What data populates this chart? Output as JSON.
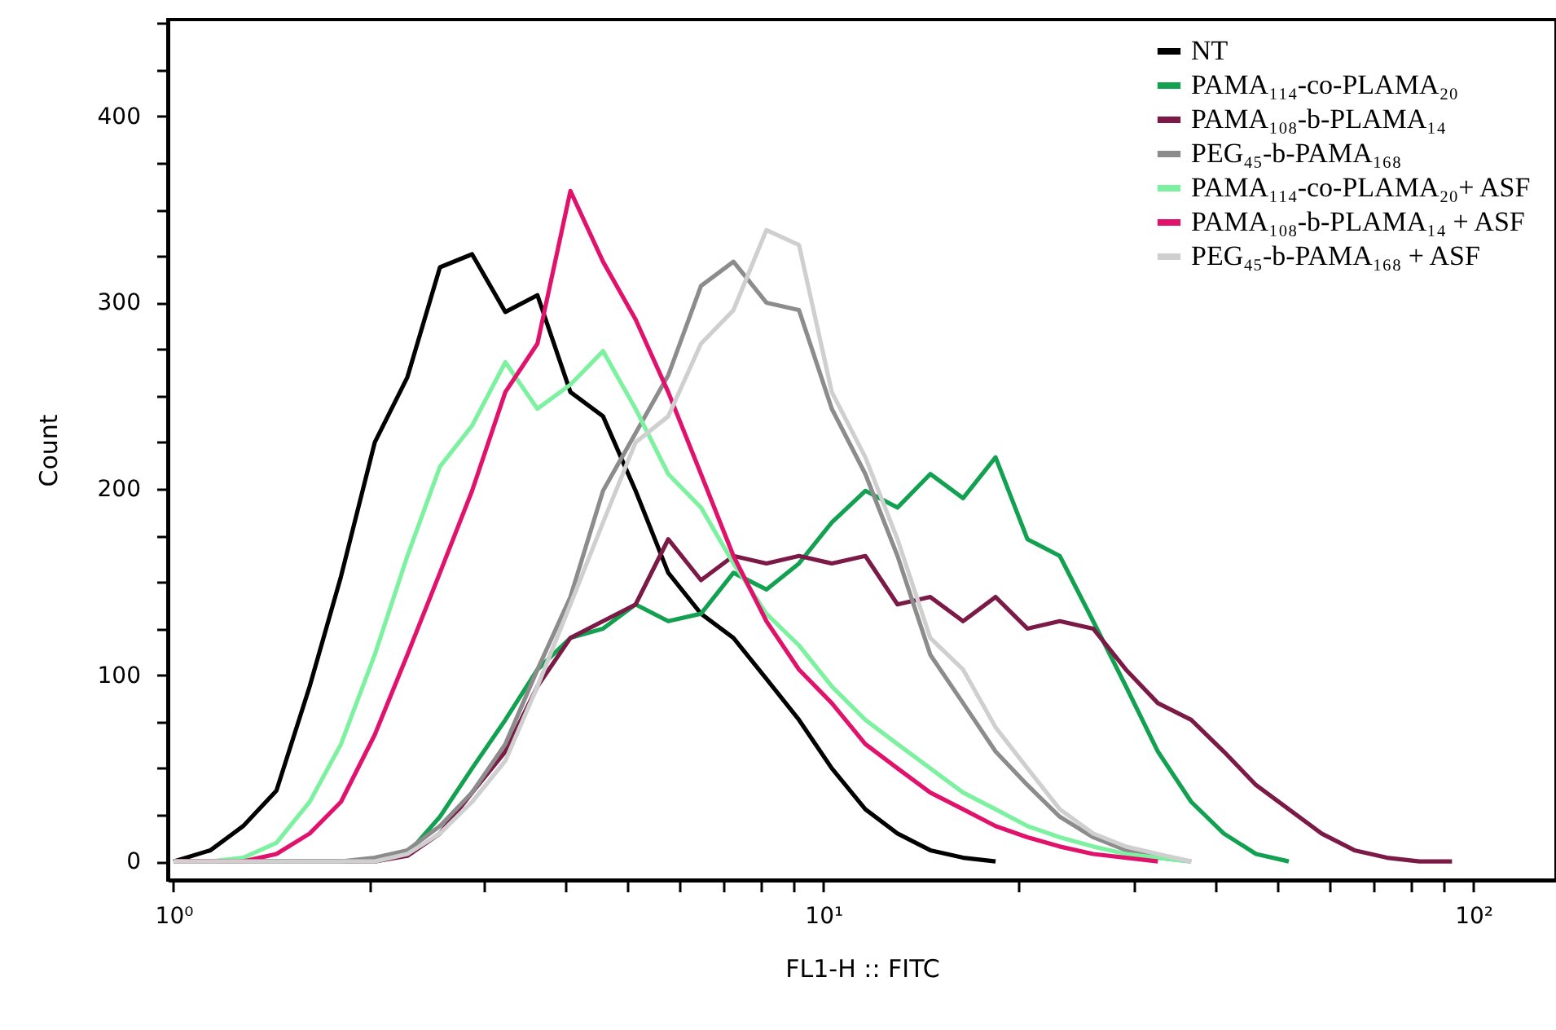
{
  "chart_data": {
    "type": "line",
    "xlabel": "FL1-H :: FITC",
    "ylabel": "Count",
    "log": "x",
    "legend": "top right",
    "grid": false,
    "line_style": "solid",
    "marker": "none",
    "xlim": [
      0.98,
      134
    ],
    "xticks": [
      {
        "value": 1,
        "label": "10⁰"
      },
      {
        "value": 2,
        "label": null
      },
      {
        "value": 3,
        "label": null
      },
      {
        "value": 4,
        "label": null
      },
      {
        "value": 5,
        "label": null
      },
      {
        "value": 6,
        "label": null
      },
      {
        "value": 7,
        "label": null
      },
      {
        "value": 8,
        "label": null
      },
      {
        "value": 9,
        "label": null
      },
      {
        "value": 10,
        "label": "10¹"
      },
      {
        "value": 20,
        "label": null
      },
      {
        "value": 30,
        "label": null
      },
      {
        "value": 40,
        "label": null
      },
      {
        "value": 50,
        "label": null
      },
      {
        "value": 60,
        "label": null
      },
      {
        "value": 70,
        "label": null
      },
      {
        "value": 80,
        "label": null
      },
      {
        "value": 90,
        "label": null
      },
      {
        "value": 100,
        "label": "10²"
      }
    ],
    "ylim": [
      -10,
      452
    ],
    "yticks": [
      0,
      {
        "value": 25,
        "label": null
      },
      {
        "value": 50,
        "label": null
      },
      {
        "value": 75,
        "label": null
      },
      100,
      {
        "value": 125,
        "label": null
      },
      {
        "value": 150,
        "label": null
      },
      {
        "value": 175,
        "label": null
      },
      200,
      {
        "value": 225,
        "label": null
      },
      {
        "value": 250,
        "label": null
      },
      {
        "value": 275,
        "label": null
      },
      300,
      {
        "value": 325,
        "label": null
      },
      {
        "value": 350,
        "label": null
      },
      {
        "value": 375,
        "label": null
      },
      400,
      {
        "value": 425,
        "label": null
      },
      {
        "value": 450,
        "label": null
      }
    ],
    "x": [
      1.0,
      1.14,
      1.28,
      1.44,
      1.62,
      1.81,
      2.04,
      2.29,
      2.57,
      2.88,
      3.24,
      3.63,
      4.08,
      4.58,
      5.14,
      5.77,
      6.48,
      7.27,
      8.17,
      9.17,
      10.3,
      11.6,
      13.0,
      14.6,
      16.4,
      18.4,
      20.6,
      23.1,
      26.0,
      29.2,
      32.7,
      36.8,
      41.3,
      46.3,
      52.0,
      58.4,
      65.6,
      73.6,
      82.6,
      92.7
    ],
    "series": [
      {
        "name": "NT",
        "color": "#000000",
        "values": [
          0,
          6,
          19,
          38,
          94,
          153,
          225,
          260,
          319,
          326,
          295,
          304,
          252,
          239,
          199,
          155,
          133,
          120,
          98,
          76,
          50,
          28,
          15,
          6,
          2,
          0,
          null,
          null,
          null,
          null,
          null,
          null,
          null,
          null,
          null,
          null,
          null,
          null,
          null,
          null
        ]
      },
      {
        "name": "PAMA₁₁₄-co-PLAMA₂₀",
        "color": "#12a150",
        "values": [
          0,
          0,
          0,
          0,
          0,
          0,
          0,
          4,
          24,
          50,
          76,
          103,
          120,
          125,
          138,
          129,
          133,
          155,
          146,
          160,
          182,
          199,
          190,
          208,
          195,
          217,
          173,
          164,
          129,
          94,
          59,
          32,
          15,
          4,
          0,
          null,
          null,
          null,
          null,
          null
        ]
      },
      {
        "name": "PAMA₁₀₈-b-PLAMA₁₄",
        "color": "#7b1a47",
        "values": [
          0,
          0,
          0,
          0,
          0,
          0,
          0,
          3,
          15,
          37,
          59,
          94,
          120,
          129,
          138,
          173,
          151,
          164,
          160,
          164,
          160,
          164,
          138,
          142,
          129,
          142,
          125,
          129,
          125,
          103,
          85,
          76,
          59,
          41,
          28,
          15,
          6,
          2,
          0,
          0
        ]
      },
      {
        "name": "PEG₄₅-b-PAMA₁₆₈",
        "color": "#8c8c8c",
        "values": [
          0,
          0,
          0,
          0,
          0,
          0,
          2,
          6,
          19,
          37,
          63,
          103,
          142,
          199,
          230,
          261,
          309,
          322,
          300,
          296,
          243,
          208,
          164,
          111,
          85,
          59,
          41,
          24,
          13,
          6,
          2,
          0,
          null,
          null,
          null,
          null,
          null,
          null,
          null,
          null
        ]
      },
      {
        "name": "PAMA₁₁₄-co-PLAMA₂₀+  ASF",
        "color": "#7cf2a0",
        "values": [
          0,
          0,
          2,
          10,
          32,
          63,
          111,
          164,
          212,
          234,
          268,
          243,
          256,
          274,
          243,
          208,
          190,
          160,
          133,
          116,
          94,
          76,
          63,
          50,
          37,
          28,
          19,
          13,
          8,
          4,
          2,
          0,
          null,
          null,
          null,
          null,
          null,
          null,
          null,
          null
        ]
      },
      {
        "name": "PAMA₁₀₈-b-PLAMA₁₄ + ASF",
        "color": "#e0126c",
        "values": [
          0,
          0,
          0,
          4,
          15,
          32,
          68,
          111,
          155,
          199,
          252,
          278,
          360,
          322,
          291,
          252,
          208,
          164,
          129,
          103,
          85,
          63,
          50,
          37,
          28,
          19,
          13,
          8,
          4,
          2,
          0,
          null,
          null,
          null,
          null,
          null,
          null,
          null,
          null,
          null
        ]
      },
      {
        "name": "PEG₄₅-b-PAMA₁₆₈ + ASF",
        "color": "#cfcfcf",
        "values": [
          0,
          0,
          0,
          0,
          0,
          0,
          0,
          4,
          15,
          32,
          54,
          94,
          138,
          182,
          225,
          239,
          278,
          296,
          339,
          331,
          252,
          217,
          173,
          120,
          103,
          72,
          50,
          28,
          15,
          8,
          4,
          0,
          null,
          null,
          null,
          null,
          null,
          null,
          null,
          null
        ]
      }
    ]
  }
}
